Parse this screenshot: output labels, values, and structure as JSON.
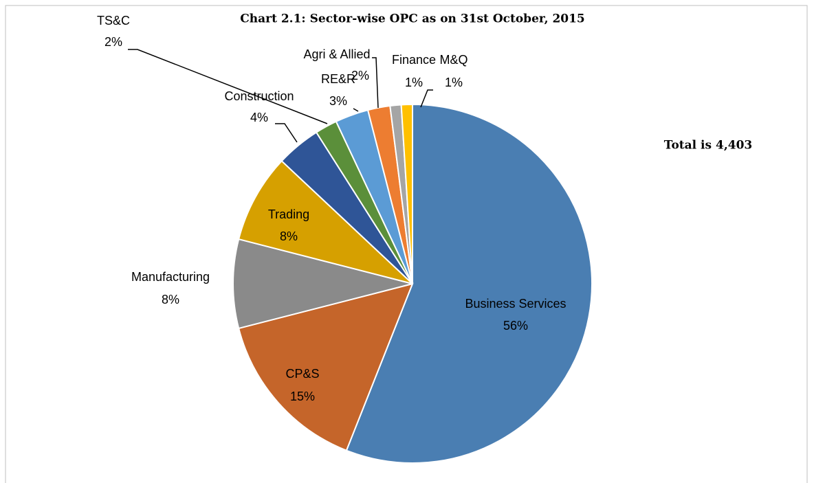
{
  "chart_data": {
    "type": "pie",
    "title": "Chart 2.1: Sector-wise OPC as on 31st October, 2015",
    "annotation": "Total is 4,403",
    "categories": [
      "Business Services",
      "CP&S",
      "Manufacturing",
      "Trading",
      "Construction",
      "TS&C",
      "RE&R",
      "Agri & Allied",
      "Finance",
      "M&Q"
    ],
    "values": [
      56,
      15,
      8,
      8,
      4,
      2,
      3,
      2,
      1,
      1
    ],
    "value_labels": [
      "56%",
      "15%",
      "8%",
      "8%",
      "4%",
      "2%",
      "3%",
      "2%",
      "1%",
      "1%"
    ],
    "colors": [
      "#4a7eb2",
      "#c5652a",
      "#8a8a8a",
      "#d6a000",
      "#2f5597",
      "#5b8f3a",
      "#5b9bd5",
      "#ed7d31",
      "#a5a5a5",
      "#ffc000"
    ]
  }
}
